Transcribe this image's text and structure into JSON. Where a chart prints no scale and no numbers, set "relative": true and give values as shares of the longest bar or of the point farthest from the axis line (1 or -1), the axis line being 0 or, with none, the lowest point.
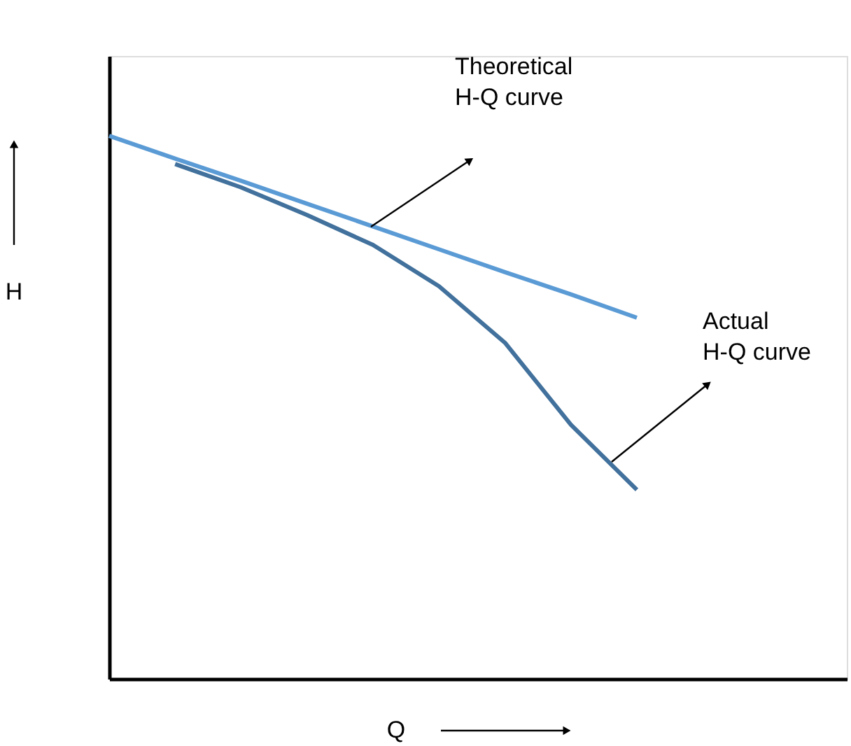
{
  "chart_data": {
    "type": "line",
    "relative": true,
    "xlabel": "Q",
    "ylabel": "H",
    "grid": false,
    "tick_labels": false,
    "marker": "none",
    "line_style": "solid",
    "categories": [
      null,
      null,
      null,
      null,
      null,
      null,
      null,
      null,
      null
    ],
    "series": [
      {
        "color": "#5b9bd5",
        "values": [
          1,
          0.958,
          0.917,
          0.875,
          0.833,
          0.791,
          0.749,
          0.708,
          0.665
        ]
      },
      {
        "color": "#41719c",
        "values": [
          null,
          0.948,
          0.905,
          0.854,
          0.799,
          0.723,
          0.619,
          0.468,
          0.348
        ]
      }
    ],
    "annotations": [
      "Theoretical\nH-Q curve",
      "Actual\nH-Q curve"
    ]
  }
}
